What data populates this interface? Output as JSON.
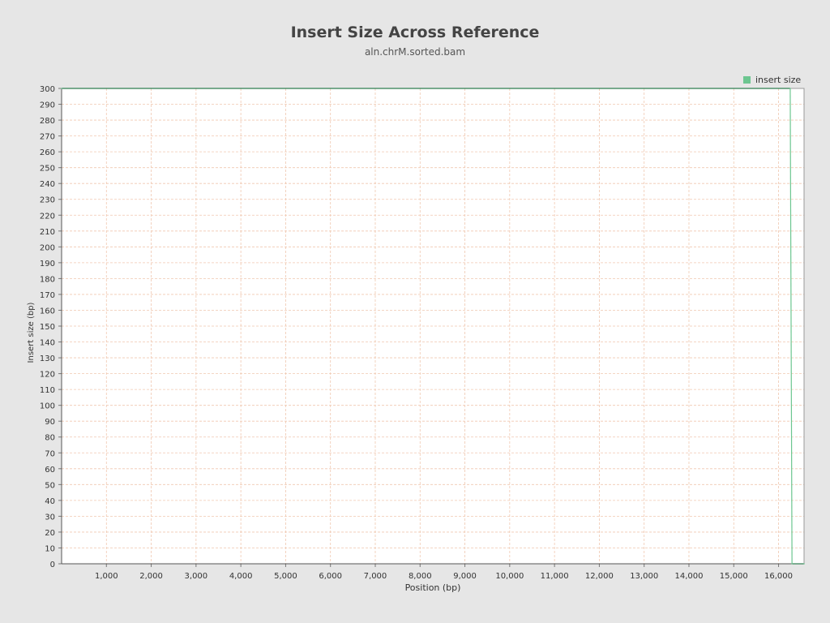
{
  "chart_data": {
    "type": "line",
    "title": "Insert Size Across Reference",
    "subtitle": "aln.chrM.sorted.bam",
    "xlabel": "Position (bp)",
    "ylabel": "Insert size (bp)",
    "xlim": [
      0,
      16569
    ],
    "ylim": [
      0,
      300
    ],
    "x_ticks": [
      1000,
      2000,
      3000,
      4000,
      5000,
      6000,
      7000,
      8000,
      9000,
      10000,
      11000,
      12000,
      13000,
      14000,
      15000,
      16000
    ],
    "x_tick_labels": [
      "1,000",
      "2,000",
      "3,000",
      "4,000",
      "5,000",
      "6,000",
      "7,000",
      "8,000",
      "9,000",
      "10,000",
      "11,000",
      "12,000",
      "13,000",
      "14,000",
      "15,000",
      "16,000"
    ],
    "y_ticks": [
      0,
      10,
      20,
      30,
      40,
      50,
      60,
      70,
      80,
      90,
      100,
      110,
      120,
      130,
      140,
      150,
      160,
      170,
      180,
      190,
      200,
      210,
      220,
      230,
      240,
      250,
      260,
      270,
      280,
      290,
      300
    ],
    "y_tick_labels": [
      "0",
      "10",
      "20",
      "30",
      "40",
      "50",
      "60",
      "70",
      "80",
      "90",
      "100",
      "110",
      "120",
      "130",
      "140",
      "150",
      "160",
      "170",
      "180",
      "190",
      "200",
      "210",
      "220",
      "230",
      "240",
      "250",
      "260",
      "270",
      "280",
      "290",
      "300"
    ],
    "grid": true,
    "legend_position": "top-right",
    "series": [
      {
        "name": "insert size",
        "color": "#6cc690",
        "x": [
          0,
          16260,
          16300,
          16569
        ],
        "y": [
          300,
          300,
          0,
          0
        ]
      }
    ]
  },
  "colors": {
    "background": "#e6e6e6",
    "plot_background": "#ffffff",
    "x_grid": "#f0c8b0",
    "y_grid": "#f0c8b0",
    "axis": "#777777",
    "line_dark": "#2e7d4f"
  }
}
